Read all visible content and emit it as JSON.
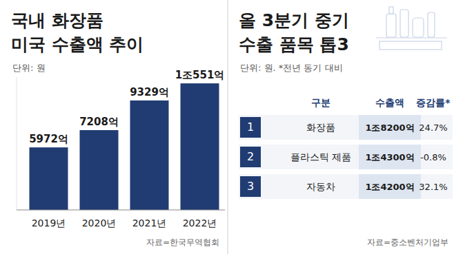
{
  "chart_data": {
    "type": "bar",
    "title": "국내 화장품\n미국 수출액 추이",
    "subtitle": "단위: 원",
    "categories": [
      "2019년",
      "2020년",
      "2021년",
      "2022년"
    ],
    "values": [
      5972,
      7208,
      9329,
      10551
    ],
    "value_labels": [
      "5972억",
      "7208억",
      "9329억",
      "1조551억"
    ],
    "color": "#213c72",
    "ylim": [
      1500,
      11000
    ],
    "tick_labels": "x",
    "data_labels": true,
    "grid": false,
    "source": "자료=한국무역협회"
  },
  "table": {
    "title": "올 3분기 중기\n수출 품목 톱3",
    "subtitle": "단위: 원. *전년 동기 대비",
    "header": [
      "구분",
      "수출액",
      "증감률*"
    ],
    "rows": [
      [
        "1",
        "화장품",
        "1조8200억",
        "24.7%"
      ],
      [
        "2",
        "플라스틱 제품",
        "1조4300억",
        "-0.8%"
      ],
      [
        "3",
        "자동차",
        "1조4200억",
        "32.1%"
      ]
    ],
    "source": "자료=중소벤처기업부"
  }
}
